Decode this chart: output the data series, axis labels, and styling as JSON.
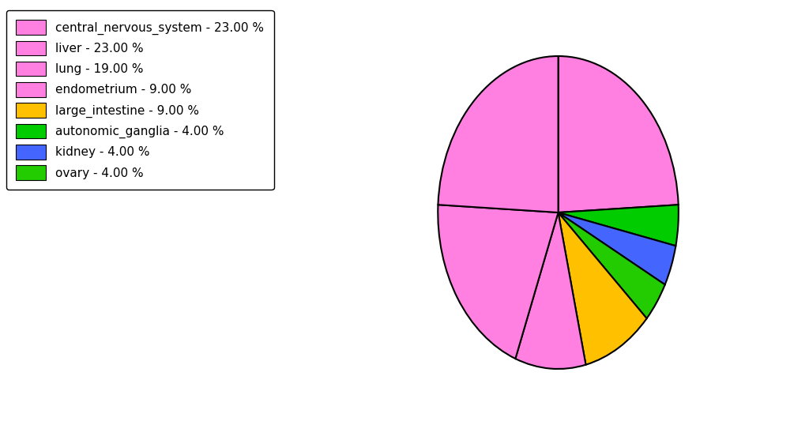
{
  "labels": [
    "central_nervous_system",
    "liver",
    "lung",
    "endometrium",
    "large_intestine",
    "autonomic_ganglia",
    "kidney",
    "ovary"
  ],
  "values": [
    23.0,
    23.0,
    19.0,
    9.0,
    9.0,
    4.0,
    4.0,
    4.0
  ],
  "colors": [
    "#FF80E0",
    "#FF80E0",
    "#FF80E0",
    "#FF80E0",
    "#FFC000",
    "#00CC00",
    "#4466FF",
    "#22CC00"
  ],
  "legend_labels": [
    "central_nervous_system - 23.00 %",
    "liver - 23.00 %",
    "lung - 19.00 %",
    "endometrium - 9.00 %",
    "large_intestine - 9.00 %",
    "autonomic_ganglia - 4.00 %",
    "kidney - 4.00 %",
    "ovary - 4.00 %"
  ],
  "legend_colors": [
    "#FF80E0",
    "#FF80E0",
    "#FF80E0",
    "#FF80E0",
    "#FFC000",
    "#00CC00",
    "#4466FF",
    "#22CC00"
  ],
  "figsize": [
    10.24,
    5.38
  ],
  "dpi": 100
}
